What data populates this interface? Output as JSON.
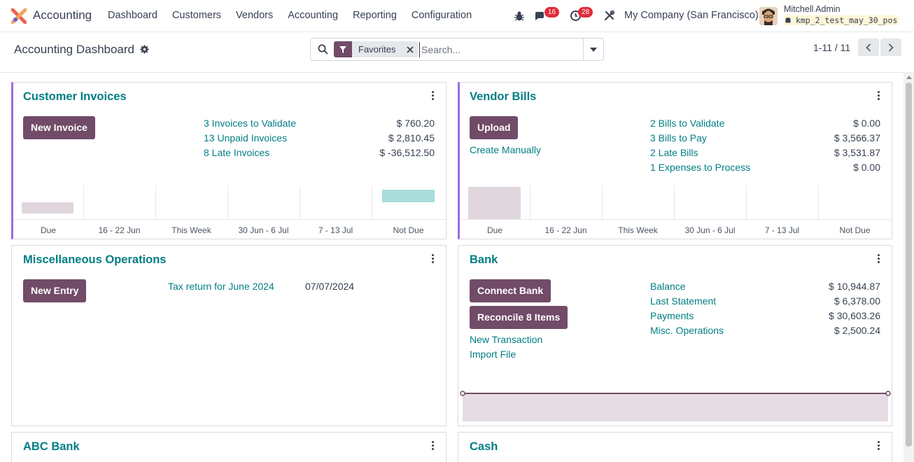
{
  "navbar": {
    "app_name": "Accounting",
    "menu": [
      "Dashboard",
      "Customers",
      "Vendors",
      "Accounting",
      "Reporting",
      "Configuration"
    ],
    "messages_count": "16",
    "activities_count": "28",
    "company": "My Company (San Francisco)",
    "user_name": "Mitchell Admin",
    "database": "kmp_2_test_may_30_pos"
  },
  "control_panel": {
    "title": "Accounting Dashboard",
    "facet_label": "Favorites",
    "search_placeholder": "Search...",
    "pager": "1-11 / 11"
  },
  "colors": {
    "primary": "#714b67",
    "link": "#017e84",
    "accent_border": "#9a6de0",
    "bar_past": "#e0d6de",
    "bar_future": "#a9dcd9"
  },
  "cards": {
    "customer_invoices": {
      "title": "Customer Invoices",
      "button": "New Invoice",
      "links": [
        {
          "label": "3 Invoices to Validate",
          "amount": "$ 760.20"
        },
        {
          "label": "13 Unpaid Invoices",
          "amount": "$ 2,810.45"
        },
        {
          "label": "8 Late Invoices",
          "amount": "$ -36,512.50"
        }
      ],
      "graph_labels": [
        "Due",
        "16 - 22 Jun",
        "This Week",
        "30 Jun - 6 Jul",
        "7 - 13 Jul",
        "Not Due"
      ]
    },
    "vendor_bills": {
      "title": "Vendor Bills",
      "button": "Upload",
      "secondary_link": "Create Manually",
      "links": [
        {
          "label": "2 Bills to Validate",
          "amount": "$ 0.00"
        },
        {
          "label": "3 Bills to Pay",
          "amount": "$ 3,566.37"
        },
        {
          "label": "2 Late Bills",
          "amount": "$ 3,531.87"
        },
        {
          "label": "1 Expenses to Process",
          "amount": "$ 0.00"
        }
      ],
      "graph_labels": [
        "Due",
        "16 - 22 Jun",
        "This Week",
        "30 Jun - 6 Jul",
        "7 - 13 Jul",
        "Not Due"
      ]
    },
    "misc_operations": {
      "title": "Miscellaneous Operations",
      "button": "New Entry",
      "item_label": "Tax return for June 2024",
      "item_date": "07/07/2024"
    },
    "bank": {
      "title": "Bank",
      "button_connect": "Connect Bank",
      "button_reconcile": "Reconcile 8 Items",
      "link_new_transaction": "New Transaction",
      "link_import": "Import File",
      "links": [
        {
          "label": "Balance",
          "amount": "$ 10,944.87"
        },
        {
          "label": "Last Statement",
          "amount": "$ 6,378.00"
        },
        {
          "label": "Payments",
          "amount": "$ 30,603.26"
        },
        {
          "label": "Misc. Operations",
          "amount": "$ 2,500.24"
        }
      ]
    },
    "abc_bank": {
      "title": "ABC Bank"
    },
    "cash": {
      "title": "Cash"
    }
  }
}
